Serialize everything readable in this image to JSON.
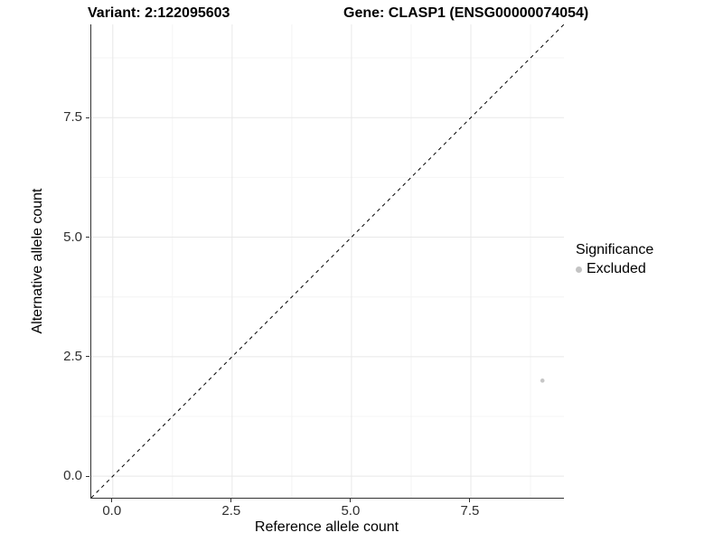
{
  "chart_data": {
    "type": "scatter",
    "title_left": "Variant: 2:122095603",
    "title_right": "Gene: CLASP1 (ENSG00000074054)",
    "xlabel": "Reference allele count",
    "ylabel": "Alternative allele count",
    "xlim": [
      -0.45,
      9.45
    ],
    "ylim": [
      -0.45,
      9.45
    ],
    "x_major_ticks": [
      0.0,
      2.5,
      5.0,
      7.5
    ],
    "y_major_ticks": [
      0.0,
      2.5,
      5.0,
      7.5
    ],
    "x_minor_gridlines": [
      1.25,
      3.75,
      6.25,
      8.75
    ],
    "y_minor_gridlines": [
      1.25,
      3.75,
      6.25,
      8.75
    ],
    "grid": true,
    "reference_line": {
      "type": "identity",
      "slope": 1,
      "intercept": 0,
      "style": "dashed"
    },
    "series": [
      {
        "name": "Excluded",
        "points": [
          {
            "x": 9,
            "y": 2
          }
        ]
      }
    ],
    "legend": {
      "title": "Significance",
      "position": "right",
      "items": [
        {
          "label": "Excluded",
          "marker": "circle"
        }
      ]
    }
  },
  "colors": {
    "point": "#c6c6c6",
    "legend_dot": "#c3c3c3",
    "grid_major": "#e8e8e8",
    "grid_minor": "#f4f4f4",
    "axis_line": "#333333",
    "reference_line": "#000000",
    "background": "#ffffff"
  }
}
